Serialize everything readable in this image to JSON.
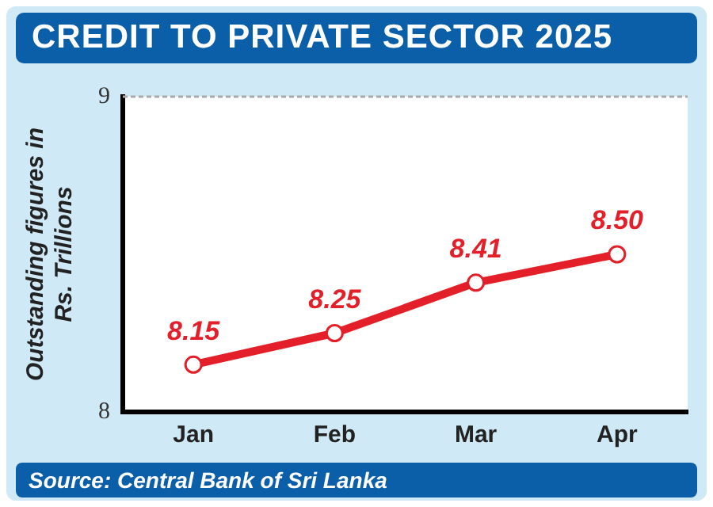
{
  "chart_data": {
    "type": "line",
    "title": "CREDIT TO PRIVATE SECTOR 2025",
    "ylabel": "Outstanding figures in Rs. Trillions",
    "categories": [
      "Jan",
      "Feb",
      "Mar",
      "Apr"
    ],
    "series": [
      {
        "color": "#e3202a",
        "values": [
          8.15,
          8.25,
          8.41,
          8.5
        ],
        "value_labels": [
          "8.15",
          "8.25",
          "8.41",
          "8.50"
        ]
      }
    ],
    "ylim": [
      8,
      9
    ],
    "yticks": [
      8,
      9
    ],
    "grid": false,
    "legend": false,
    "marker": "circle",
    "line_style": "solid",
    "annotations": [
      "Source: Central Bank of Sri Lanka"
    ]
  }
}
